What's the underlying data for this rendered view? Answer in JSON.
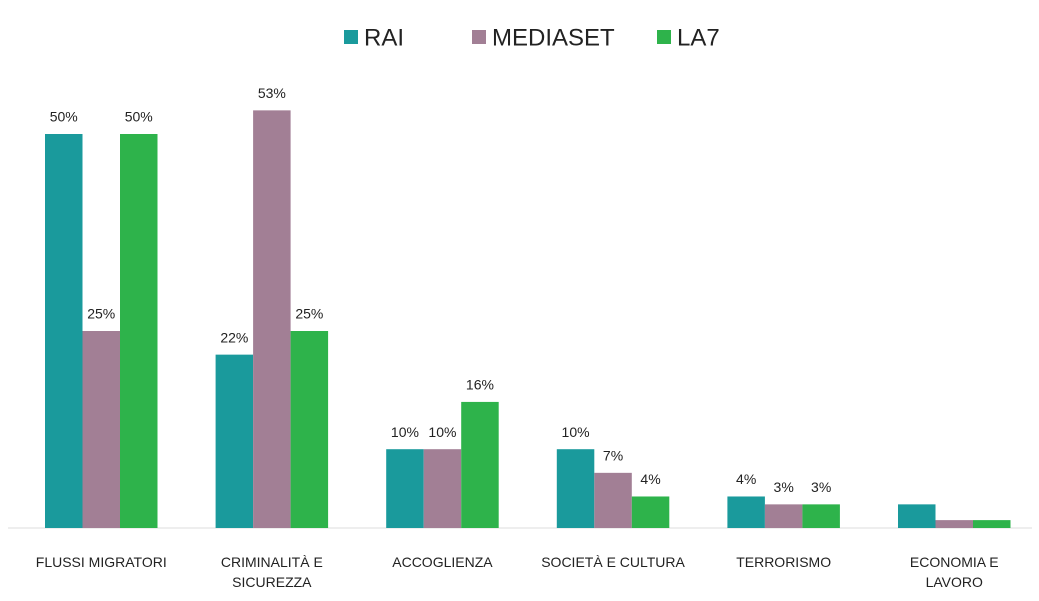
{
  "chart_data": {
    "type": "bar",
    "categories": [
      "FLUSSI MIGRATORI",
      "CRIMINALITÀ E\nSICUREZZA",
      "ACCOGLIENZA",
      "SOCIETÀ E CULTURA",
      "TERRORISMO",
      "ECONOMIA E\nLAVORO"
    ],
    "series": [
      {
        "name": "RAI",
        "color": "#1a9a9c",
        "values": [
          50,
          22,
          10,
          10,
          4,
          3
        ],
        "value_labels": [
          "50%",
          "22%",
          "10%",
          "10%",
          "4%",
          null
        ]
      },
      {
        "name": "MEDIASET",
        "color": "#a27f95",
        "values": [
          25,
          53,
          10,
          7,
          3,
          1
        ],
        "value_labels": [
          "25%",
          "53%",
          "10%",
          "7%",
          "3%",
          null
        ]
      },
      {
        "name": "LA7",
        "color": "#2eb34b",
        "values": [
          50,
          25,
          16,
          4,
          3,
          1
        ],
        "value_labels": [
          "50%",
          "25%",
          "16%",
          "4%",
          "3%",
          null
        ]
      }
    ],
    "ylim": [
      0,
      50
    ],
    "legend": "top"
  }
}
